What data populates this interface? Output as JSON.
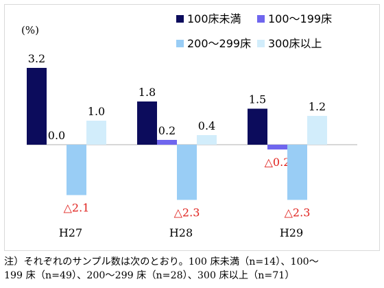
{
  "chart_data": {
    "type": "bar",
    "ylabel": "(%)",
    "categories": [
      "H27",
      "H28",
      "H29"
    ],
    "series": [
      {
        "name": "100床未満",
        "color": "#0c0c5c",
        "values": [
          3.2,
          1.8,
          1.5
        ],
        "labels": [
          "3.2",
          "1.8",
          "1.5"
        ]
      },
      {
        "name": "100～199床",
        "color": "#6f66ee",
        "values": [
          0.0,
          0.2,
          -0.2
        ],
        "labels": [
          "0.0",
          "0.2",
          "△0.2"
        ]
      },
      {
        "name": "200～299床",
        "color": "#99cdf5",
        "values": [
          -2.1,
          -2.3,
          -2.3
        ],
        "labels": [
          "△2.1",
          "△2.3",
          "△2.3"
        ]
      },
      {
        "name": "300床以上",
        "color": "#d2edfb",
        "values": [
          1.0,
          0.4,
          1.2
        ],
        "labels": [
          "1.0",
          "0.4",
          "1.2"
        ]
      }
    ],
    "negative_label_color": "#e0201c",
    "grid": false,
    "legend_position": "top-right"
  },
  "note": {
    "line1": "注）それぞれのサンプル数は次のとおり。100 床未満（n=14）、100～",
    "line2": "199 床（n=49）、200～299 床（n=28）、300 床以上（n=71）"
  }
}
